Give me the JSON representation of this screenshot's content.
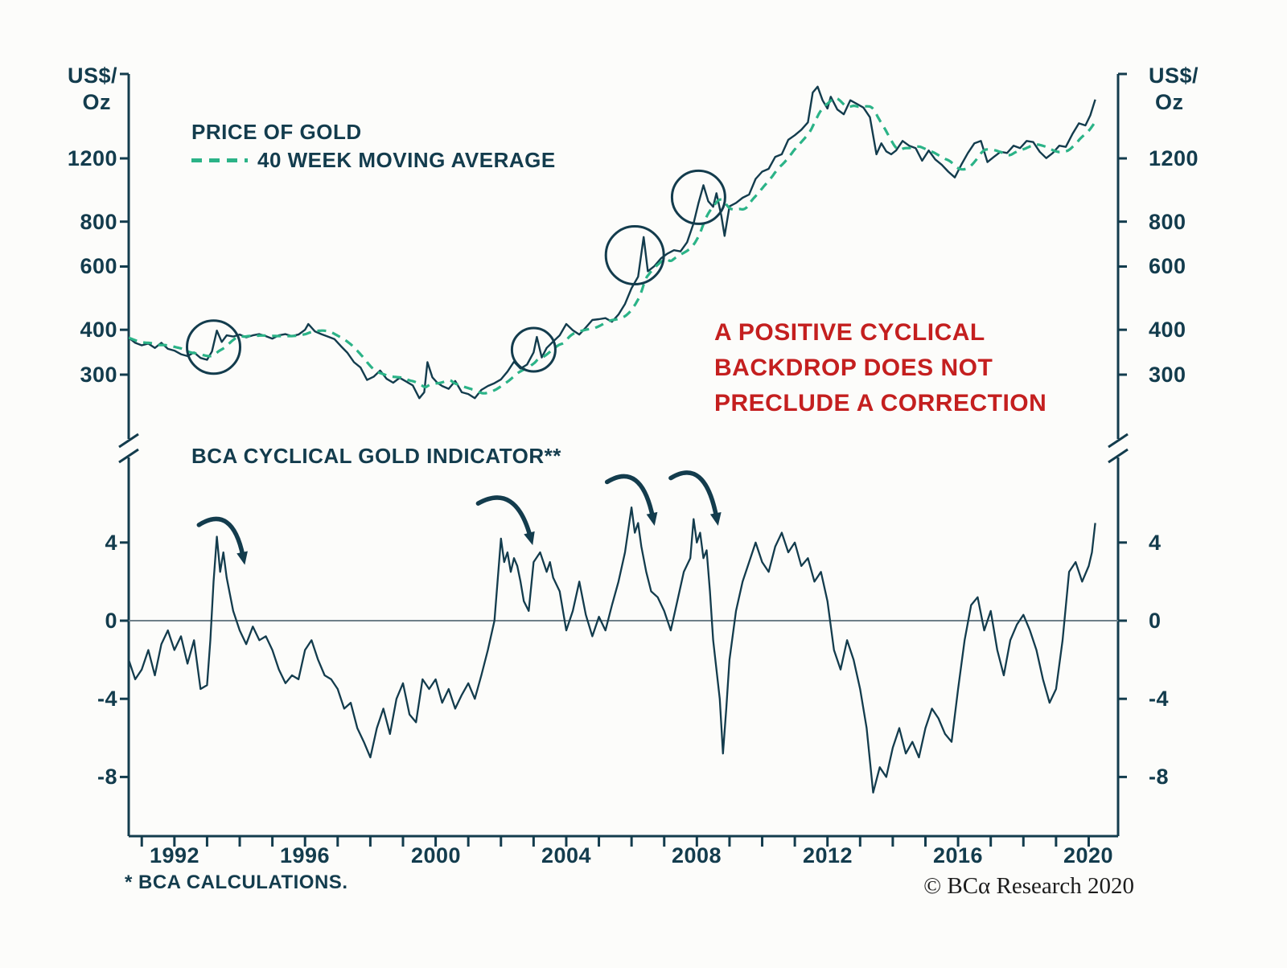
{
  "top_panel": {
    "unit": [
      "US$/",
      "Oz"
    ],
    "y_ticks": [
      1200,
      800,
      600,
      400,
      300
    ],
    "legend": {
      "price": "PRICE OF GOLD",
      "ma": "40 WEEK MOVING AVERAGE"
    },
    "annotation_lines": [
      "A POSITIVE CYCLICAL",
      "BACKDROP DOES NOT",
      "PRECLUDE A CORRECTION"
    ]
  },
  "bottom_panel": {
    "title": "BCA CYCLICAL GOLD INDICATOR**",
    "y_ticks": [
      4,
      0,
      -4,
      -8
    ]
  },
  "x_ticks": [
    1992,
    1996,
    2000,
    2004,
    2008,
    2012,
    2016,
    2020
  ],
  "footer": {
    "footnote": "* BCA CALCULATIONS.",
    "copyright": "© BCα Research 2020"
  },
  "colors": {
    "navy": "#133c4d",
    "green": "#2bb387",
    "red": "#c41f1f",
    "zero": "#6e7f88",
    "background": "#fcfcfa"
  },
  "chart_data": [
    {
      "type": "line",
      "title": "PRICE OF GOLD",
      "ylabel": "US$/Oz",
      "yscale": "log",
      "xlim": [
        1990.6,
        2020.9
      ],
      "ylim": [
        250,
        2050
      ],
      "y_ticks": [
        1200,
        800,
        600,
        400,
        300
      ],
      "x_ticks": [
        1992,
        1996,
        2000,
        2004,
        2008,
        2012,
        2016,
        2020
      ],
      "legend": [
        "PRICE OF GOLD",
        "40 WEEK MOVING AVERAGE"
      ],
      "series": [
        {
          "name": "PRICE OF GOLD",
          "x": [
            1990.6,
            1990.8,
            1991.0,
            1991.2,
            1991.4,
            1991.6,
            1991.8,
            1992.0,
            1992.2,
            1992.4,
            1992.6,
            1992.8,
            1993.0,
            1993.15,
            1993.3,
            1993.45,
            1993.6,
            1993.8,
            1994.0,
            1994.2,
            1994.4,
            1994.6,
            1994.8,
            1995.0,
            1995.2,
            1995.4,
            1995.6,
            1995.8,
            1996.0,
            1996.1,
            1996.3,
            1996.5,
            1996.7,
            1996.9,
            1997.1,
            1997.3,
            1997.5,
            1997.7,
            1997.9,
            1998.1,
            1998.3,
            1998.5,
            1998.7,
            1998.9,
            1999.1,
            1999.3,
            1999.5,
            1999.65,
            1999.75,
            1999.9,
            2000.05,
            2000.2,
            2000.4,
            2000.6,
            2000.8,
            2001.0,
            2001.2,
            2001.4,
            2001.6,
            2001.8,
            2002.0,
            2002.2,
            2002.4,
            2002.6,
            2002.8,
            2003.0,
            2003.1,
            2003.25,
            2003.4,
            2003.6,
            2003.8,
            2004.0,
            2004.2,
            2004.4,
            2004.6,
            2004.8,
            2005.0,
            2005.2,
            2005.4,
            2005.6,
            2005.8,
            2006.0,
            2006.2,
            2006.37,
            2006.5,
            2006.7,
            2006.9,
            2007.1,
            2007.3,
            2007.5,
            2007.7,
            2007.9,
            2008.05,
            2008.2,
            2008.35,
            2008.5,
            2008.6,
            2008.75,
            2008.85,
            2009.0,
            2009.2,
            2009.4,
            2009.6,
            2009.8,
            2010.0,
            2010.2,
            2010.4,
            2010.6,
            2010.8,
            2011.0,
            2011.2,
            2011.4,
            2011.55,
            2011.7,
            2011.85,
            2012.0,
            2012.1,
            2012.3,
            2012.5,
            2012.7,
            2012.9,
            2013.1,
            2013.3,
            2013.5,
            2013.65,
            2013.8,
            2013.95,
            2014.1,
            2014.3,
            2014.5,
            2014.7,
            2014.9,
            2015.1,
            2015.3,
            2015.5,
            2015.7,
            2015.9,
            2016.1,
            2016.3,
            2016.5,
            2016.7,
            2016.9,
            2017.1,
            2017.3,
            2017.5,
            2017.7,
            2017.9,
            2018.1,
            2018.3,
            2018.5,
            2018.7,
            2018.9,
            2019.1,
            2019.3,
            2019.5,
            2019.7,
            2019.9,
            2020.05,
            2020.2
          ],
          "y": [
            380,
            368,
            362,
            366,
            356,
            368,
            354,
            350,
            342,
            338,
            346,
            334,
            330,
            348,
            398,
            370,
            386,
            383,
            388,
            381,
            386,
            389,
            384,
            378,
            386,
            389,
            384,
            388,
            400,
            415,
            396,
            389,
            383,
            377,
            360,
            345,
            325,
            314,
            290,
            296,
            308,
            292,
            285,
            294,
            287,
            280,
            258,
            268,
            325,
            295,
            285,
            279,
            274,
            288,
            268,
            265,
            258,
            272,
            279,
            284,
            291,
            306,
            326,
            312,
            320,
            346,
            382,
            335,
            356,
            371,
            386,
            415,
            399,
            388,
            406,
            426,
            428,
            431,
            421,
            441,
            472,
            522,
            562,
            725,
            582,
            602,
            632,
            652,
            666,
            661,
            701,
            792,
            902,
            1010,
            912,
            880,
            960,
            830,
            730,
            882,
            902,
            932,
            952,
            1052,
            1102,
            1122,
            1212,
            1232,
            1352,
            1392,
            1442,
            1512,
            1830,
            1900,
            1742,
            1652,
            1782,
            1642,
            1592,
            1742,
            1702,
            1662,
            1562,
            1232,
            1322,
            1255,
            1232,
            1262,
            1342,
            1302,
            1282,
            1182,
            1262,
            1192,
            1152,
            1102,
            1062,
            1152,
            1242,
            1322,
            1342,
            1172,
            1212,
            1252,
            1242,
            1302,
            1282,
            1342,
            1332,
            1252,
            1202,
            1242,
            1302,
            1292,
            1402,
            1502,
            1482,
            1582,
            1750
          ]
        },
        {
          "name": "40 WEEK MOVING AVERAGE",
          "derived_from": "PRICE OF GOLD",
          "window_weeks": 40
        }
      ],
      "annotations": {
        "text": "A POSITIVE CYCLICAL BACKDROP DOES NOT PRECLUDE A CORRECTION",
        "circles": [
          {
            "x": 1993.2,
            "y": 358,
            "r": 33
          },
          {
            "x": 2003.0,
            "y": 352,
            "r": 27
          },
          {
            "x": 2006.1,
            "y": 645,
            "r": 36
          },
          {
            "x": 2008.05,
            "y": 935,
            "r": 33
          }
        ]
      }
    },
    {
      "type": "line",
      "title": "BCA CYCLICAL GOLD INDICATOR**",
      "xlim": [
        1990.6,
        2020.9
      ],
      "ylim": [
        -11,
        8.5
      ],
      "y_ticks": [
        4,
        0,
        -4,
        -8
      ],
      "zero_line": true,
      "series": [
        {
          "name": "BCA CYCLICAL GOLD INDICATOR",
          "x": [
            1990.6,
            1990.8,
            1991.0,
            1991.2,
            1991.4,
            1991.6,
            1991.8,
            1992.0,
            1992.2,
            1992.4,
            1992.6,
            1992.8,
            1993.0,
            1993.1,
            1993.2,
            1993.3,
            1993.4,
            1993.5,
            1993.6,
            1993.8,
            1994.0,
            1994.2,
            1994.4,
            1994.6,
            1994.8,
            1995.0,
            1995.2,
            1995.4,
            1995.6,
            1995.8,
            1996.0,
            1996.2,
            1996.4,
            1996.6,
            1996.8,
            1997.0,
            1997.2,
            1997.4,
            1997.6,
            1997.8,
            1998.0,
            1998.2,
            1998.4,
            1998.6,
            1998.8,
            1999.0,
            1999.2,
            1999.4,
            1999.6,
            1999.8,
            2000.0,
            2000.2,
            2000.4,
            2000.6,
            2000.8,
            2001.0,
            2001.2,
            2001.4,
            2001.6,
            2001.8,
            2002.0,
            2002.1,
            2002.2,
            2002.3,
            2002.4,
            2002.5,
            2002.6,
            2002.7,
            2002.85,
            2003.0,
            2003.2,
            2003.4,
            2003.5,
            2003.6,
            2003.8,
            2004.0,
            2004.2,
            2004.4,
            2004.6,
            2004.8,
            2005.0,
            2005.2,
            2005.4,
            2005.6,
            2005.8,
            2006.0,
            2006.1,
            2006.2,
            2006.3,
            2006.45,
            2006.6,
            2006.8,
            2007.0,
            2007.2,
            2007.4,
            2007.6,
            2007.8,
            2007.9,
            2008.0,
            2008.1,
            2008.2,
            2008.3,
            2008.4,
            2008.5,
            2008.6,
            2008.7,
            2008.8,
            2008.9,
            2009.0,
            2009.2,
            2009.4,
            2009.6,
            2009.8,
            2010.0,
            2010.2,
            2010.4,
            2010.6,
            2010.8,
            2011.0,
            2011.2,
            2011.4,
            2011.6,
            2011.8,
            2012.0,
            2012.2,
            2012.4,
            2012.6,
            2012.8,
            2013.0,
            2013.2,
            2013.4,
            2013.6,
            2013.8,
            2014.0,
            2014.2,
            2014.4,
            2014.6,
            2014.8,
            2015.0,
            2015.2,
            2015.4,
            2015.6,
            2015.8,
            2016.0,
            2016.2,
            2016.4,
            2016.6,
            2016.8,
            2017.0,
            2017.2,
            2017.4,
            2017.6,
            2017.8,
            2018.0,
            2018.2,
            2018.4,
            2018.6,
            2018.8,
            2019.0,
            2019.2,
            2019.4,
            2019.6,
            2019.8,
            2020.0,
            2020.1,
            2020.2
          ],
          "y": [
            -2.0,
            -3.0,
            -2.5,
            -1.5,
            -2.8,
            -1.2,
            -0.5,
            -1.5,
            -0.8,
            -2.2,
            -1.0,
            -3.5,
            -3.3,
            -1.0,
            2.0,
            4.3,
            2.5,
            3.5,
            2.2,
            0.5,
            -0.5,
            -1.2,
            -0.3,
            -1.0,
            -0.8,
            -1.5,
            -2.5,
            -3.2,
            -2.8,
            -3.0,
            -1.5,
            -1.0,
            -2.0,
            -2.8,
            -3.0,
            -3.5,
            -4.5,
            -4.2,
            -5.5,
            -6.2,
            -7.0,
            -5.5,
            -4.5,
            -5.8,
            -4.0,
            -3.2,
            -4.8,
            -5.2,
            -3.0,
            -3.5,
            -3.0,
            -4.2,
            -3.5,
            -4.5,
            -3.8,
            -3.2,
            -4.0,
            -2.8,
            -1.5,
            0.0,
            4.2,
            3.0,
            3.5,
            2.5,
            3.2,
            2.8,
            2.0,
            1.0,
            0.5,
            3.0,
            3.5,
            2.5,
            3.0,
            2.2,
            1.5,
            -0.5,
            0.5,
            2.0,
            0.3,
            -0.8,
            0.2,
            -0.5,
            0.8,
            2.0,
            3.5,
            5.8,
            4.5,
            5.0,
            3.8,
            2.5,
            1.5,
            1.2,
            0.5,
            -0.5,
            1.0,
            2.5,
            3.2,
            5.2,
            4.0,
            4.5,
            3.2,
            3.6,
            1.5,
            -1.0,
            -2.5,
            -4.0,
            -6.8,
            -4.5,
            -2.0,
            0.5,
            2.0,
            3.0,
            4.0,
            3.0,
            2.5,
            3.8,
            4.5,
            3.5,
            4.0,
            2.8,
            3.2,
            2.0,
            2.5,
            1.0,
            -1.5,
            -2.5,
            -1.0,
            -2.0,
            -3.5,
            -5.5,
            -8.8,
            -7.5,
            -8.0,
            -6.5,
            -5.5,
            -6.8,
            -6.2,
            -7.0,
            -5.5,
            -4.5,
            -5.0,
            -5.8,
            -6.2,
            -3.5,
            -1.0,
            0.8,
            1.2,
            -0.5,
            0.5,
            -1.5,
            -2.8,
            -1.0,
            -0.2,
            0.3,
            -0.5,
            -1.5,
            -3.0,
            -4.2,
            -3.5,
            -1.0,
            2.5,
            3.0,
            2.0,
            2.8,
            3.5,
            5.0
          ]
        }
      ],
      "annotations": {
        "arrows": [
          {
            "from": [
              1992.75,
              4.9
            ],
            "to": [
              1994.1,
              3.3
            ]
          },
          {
            "from": [
              2001.3,
              6.0
            ],
            "to": [
              2002.9,
              4.3
            ]
          },
          {
            "from": [
              2005.25,
              7.1
            ],
            "to": [
              2006.65,
              5.3
            ]
          },
          {
            "from": [
              2007.2,
              7.3
            ],
            "to": [
              2008.6,
              5.3
            ]
          }
        ]
      }
    }
  ]
}
